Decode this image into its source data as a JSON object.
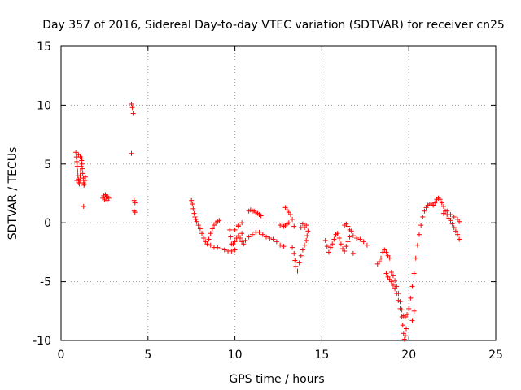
{
  "chart_data": {
    "type": "scatter",
    "title": "Day 357 of 2016, Sidereal Day-to-day VTEC variation (SDTVAR) for receiver cn25",
    "xlabel": "GPS time / hours",
    "ylabel": "SDTVAR / TECUs",
    "xlim": [
      0,
      25
    ],
    "ylim": [
      -10,
      15
    ],
    "x_ticks": [
      0,
      5,
      10,
      15,
      20,
      25
    ],
    "y_ticks": [
      -10,
      -5,
      0,
      5,
      10,
      15
    ],
    "grid": true,
    "marker": "+",
    "color": "#ff0000",
    "series": [
      {
        "name": "SDTVAR",
        "points": [
          [
            0.85,
            6.0
          ],
          [
            0.88,
            5.6
          ],
          [
            0.9,
            5.2
          ],
          [
            0.92,
            4.8
          ],
          [
            0.95,
            4.4
          ],
          [
            0.97,
            4.0
          ],
          [
            1.0,
            3.7
          ],
          [
            1.02,
            3.4
          ],
          [
            1.05,
            3.3
          ],
          [
            1.08,
            3.6
          ],
          [
            1.1,
            4.0
          ],
          [
            1.12,
            4.4
          ],
          [
            1.15,
            4.8
          ],
          [
            1.18,
            5.3
          ],
          [
            1.2,
            5.0
          ],
          [
            1.22,
            4.6
          ],
          [
            1.25,
            4.2
          ],
          [
            1.28,
            3.8
          ],
          [
            1.3,
            3.4
          ],
          [
            1.32,
            3.2
          ],
          [
            1.35,
            3.3
          ],
          [
            1.38,
            3.6
          ],
          [
            1.4,
            3.9
          ],
          [
            0.9,
            3.6
          ],
          [
            1.0,
            5.8
          ],
          [
            1.1,
            5.6
          ],
          [
            1.2,
            5.5
          ],
          [
            1.3,
            1.4
          ],
          [
            2.4,
            2.1
          ],
          [
            2.45,
            2.3
          ],
          [
            2.5,
            2.0
          ],
          [
            2.55,
            2.4
          ],
          [
            2.6,
            2.2
          ],
          [
            2.65,
            1.9
          ],
          [
            2.7,
            2.2
          ],
          [
            2.75,
            2.1
          ],
          [
            4.05,
            10.1
          ],
          [
            4.1,
            9.8
          ],
          [
            4.15,
            9.3
          ],
          [
            4.05,
            5.9
          ],
          [
            4.2,
            1.9
          ],
          [
            4.25,
            1.7
          ],
          [
            4.2,
            1.0
          ],
          [
            4.25,
            0.9
          ],
          [
            7.5,
            1.9
          ],
          [
            7.55,
            1.6
          ],
          [
            7.6,
            1.2
          ],
          [
            7.65,
            0.8
          ],
          [
            7.7,
            0.5
          ],
          [
            7.75,
            0.3
          ],
          [
            7.8,
            0.1
          ],
          [
            7.9,
            -0.2
          ],
          [
            8.0,
            -0.5
          ],
          [
            8.1,
            -0.9
          ],
          [
            8.2,
            -1.3
          ],
          [
            8.3,
            -1.6
          ],
          [
            8.4,
            -1.8
          ],
          [
            8.5,
            -1.4
          ],
          [
            8.6,
            -0.9
          ],
          [
            8.7,
            -0.5
          ],
          [
            8.8,
            -0.2
          ],
          [
            8.9,
            0.0
          ],
          [
            9.0,
            0.1
          ],
          [
            9.1,
            0.2
          ],
          [
            8.6,
            -1.9
          ],
          [
            8.8,
            -2.1
          ],
          [
            9.0,
            -2.1
          ],
          [
            9.2,
            -2.2
          ],
          [
            9.4,
            -2.3
          ],
          [
            9.6,
            -2.4
          ],
          [
            9.8,
            -2.4
          ],
          [
            10.0,
            -2.3
          ],
          [
            9.9,
            -1.8
          ],
          [
            10.0,
            -1.6
          ],
          [
            10.1,
            -1.3
          ],
          [
            10.2,
            -1.1
          ],
          [
            10.3,
            -1.3
          ],
          [
            10.4,
            -1.6
          ],
          [
            10.5,
            -1.8
          ],
          [
            9.7,
            -0.6
          ],
          [
            9.75,
            -1.2
          ],
          [
            9.8,
            -1.8
          ],
          [
            10.0,
            -0.6
          ],
          [
            10.2,
            -0.3
          ],
          [
            10.4,
            -0.9
          ],
          [
            10.6,
            -1.5
          ],
          [
            10.8,
            -1.2
          ],
          [
            11.0,
            -1.0
          ],
          [
            11.2,
            -0.8
          ],
          [
            11.4,
            -0.8
          ],
          [
            11.6,
            -1.0
          ],
          [
            11.8,
            -1.2
          ],
          [
            12.0,
            -1.3
          ],
          [
            12.2,
            -1.4
          ],
          [
            12.4,
            -1.6
          ],
          [
            12.6,
            -1.9
          ],
          [
            12.8,
            -2.0
          ],
          [
            10.8,
            1.0
          ],
          [
            10.9,
            1.1
          ],
          [
            11.0,
            1.0
          ],
          [
            11.1,
            1.0
          ],
          [
            11.2,
            0.9
          ],
          [
            11.3,
            0.8
          ],
          [
            11.4,
            0.7
          ],
          [
            11.5,
            0.6
          ],
          [
            10.2,
            -0.2
          ],
          [
            10.4,
            0.0
          ],
          [
            12.6,
            -0.2
          ],
          [
            12.8,
            -0.3
          ],
          [
            12.9,
            -0.2
          ],
          [
            13.0,
            -0.1
          ],
          [
            13.1,
            0.0
          ],
          [
            12.9,
            1.3
          ],
          [
            13.0,
            1.1
          ],
          [
            13.1,
            0.9
          ],
          [
            13.2,
            0.7
          ],
          [
            13.3,
            0.3
          ],
          [
            13.4,
            -0.3
          ],
          [
            13.3,
            -2.1
          ],
          [
            13.4,
            -2.6
          ],
          [
            13.45,
            -3.2
          ],
          [
            13.5,
            -3.7
          ],
          [
            13.6,
            -4.1
          ],
          [
            13.7,
            -3.4
          ],
          [
            13.8,
            -2.8
          ],
          [
            13.9,
            -2.3
          ],
          [
            14.0,
            -1.9
          ],
          [
            14.1,
            -1.5
          ],
          [
            14.15,
            -1.1
          ],
          [
            14.2,
            -0.7
          ],
          [
            14.0,
            -0.4
          ],
          [
            14.1,
            -0.2
          ],
          [
            13.9,
            -0.1
          ],
          [
            13.8,
            -0.4
          ],
          [
            15.2,
            -1.5
          ],
          [
            15.3,
            -2.0
          ],
          [
            15.4,
            -2.5
          ],
          [
            15.5,
            -2.1
          ],
          [
            15.6,
            -1.8
          ],
          [
            15.7,
            -1.4
          ],
          [
            15.8,
            -1.0
          ],
          [
            15.9,
            -0.9
          ],
          [
            16.0,
            -1.3
          ],
          [
            16.1,
            -1.8
          ],
          [
            16.2,
            -2.2
          ],
          [
            16.3,
            -2.4
          ],
          [
            16.4,
            -2.0
          ],
          [
            16.5,
            -1.6
          ],
          [
            16.6,
            -1.2
          ],
          [
            16.7,
            -0.7
          ],
          [
            16.5,
            -0.3
          ],
          [
            16.4,
            -0.1
          ],
          [
            16.3,
            -0.2
          ],
          [
            16.6,
            -0.6
          ],
          [
            16.8,
            -1.1
          ],
          [
            17.0,
            -1.3
          ],
          [
            17.2,
            -1.4
          ],
          [
            17.4,
            -1.6
          ],
          [
            17.6,
            -1.9
          ],
          [
            16.8,
            -2.6
          ],
          [
            18.2,
            -3.5
          ],
          [
            18.3,
            -3.3
          ],
          [
            18.4,
            -3.0
          ],
          [
            18.5,
            -2.5
          ],
          [
            18.6,
            -2.3
          ],
          [
            18.7,
            -2.5
          ],
          [
            18.8,
            -2.8
          ],
          [
            18.9,
            -3.0
          ],
          [
            18.7,
            -4.3
          ],
          [
            18.8,
            -4.6
          ],
          [
            18.9,
            -4.8
          ],
          [
            19.0,
            -5.0
          ],
          [
            19.1,
            -5.3
          ],
          [
            19.2,
            -5.6
          ],
          [
            19.3,
            -6.0
          ],
          [
            19.4,
            -6.6
          ],
          [
            19.5,
            -7.3
          ],
          [
            19.6,
            -8.0
          ],
          [
            19.65,
            -8.7
          ],
          [
            19.7,
            -9.4
          ],
          [
            19.75,
            -9.9
          ],
          [
            19.8,
            -9.6
          ],
          [
            19.85,
            -9.0
          ],
          [
            19.0,
            -4.2
          ],
          [
            19.1,
            -4.5
          ],
          [
            19.2,
            -4.9
          ],
          [
            19.3,
            -5.4
          ],
          [
            19.4,
            -6.0
          ],
          [
            19.5,
            -6.7
          ],
          [
            19.6,
            -7.4
          ],
          [
            19.7,
            -7.9
          ],
          [
            19.8,
            -8.0
          ],
          [
            19.9,
            -7.8
          ],
          [
            20.0,
            -7.3
          ],
          [
            20.1,
            -6.4
          ],
          [
            20.2,
            -5.4
          ],
          [
            20.3,
            -4.3
          ],
          [
            20.4,
            -3.0
          ],
          [
            20.5,
            -1.9
          ],
          [
            20.6,
            -1.0
          ],
          [
            20.7,
            -0.2
          ],
          [
            20.8,
            0.5
          ],
          [
            20.9,
            1.0
          ],
          [
            21.0,
            1.3
          ],
          [
            21.1,
            1.5
          ],
          [
            21.2,
            1.6
          ],
          [
            21.3,
            1.6
          ],
          [
            21.4,
            1.5
          ],
          [
            21.5,
            1.7
          ],
          [
            21.6,
            2.0
          ],
          [
            21.7,
            2.1
          ],
          [
            21.8,
            2.0
          ],
          [
            21.9,
            1.7
          ],
          [
            22.0,
            1.4
          ],
          [
            22.1,
            1.0
          ],
          [
            22.2,
            0.7
          ],
          [
            22.3,
            0.4
          ],
          [
            22.4,
            0.2
          ],
          [
            22.5,
            -0.1
          ],
          [
            22.6,
            -0.4
          ],
          [
            22.7,
            -0.7
          ],
          [
            22.8,
            -1.0
          ],
          [
            22.9,
            -1.4
          ],
          [
            22.0,
            0.8
          ],
          [
            22.2,
            1.0
          ],
          [
            22.4,
            0.7
          ],
          [
            22.6,
            0.5
          ],
          [
            22.8,
            0.3
          ],
          [
            22.9,
            0.1
          ],
          [
            20.3,
            -7.5
          ],
          [
            20.2,
            -8.3
          ]
        ]
      }
    ]
  }
}
